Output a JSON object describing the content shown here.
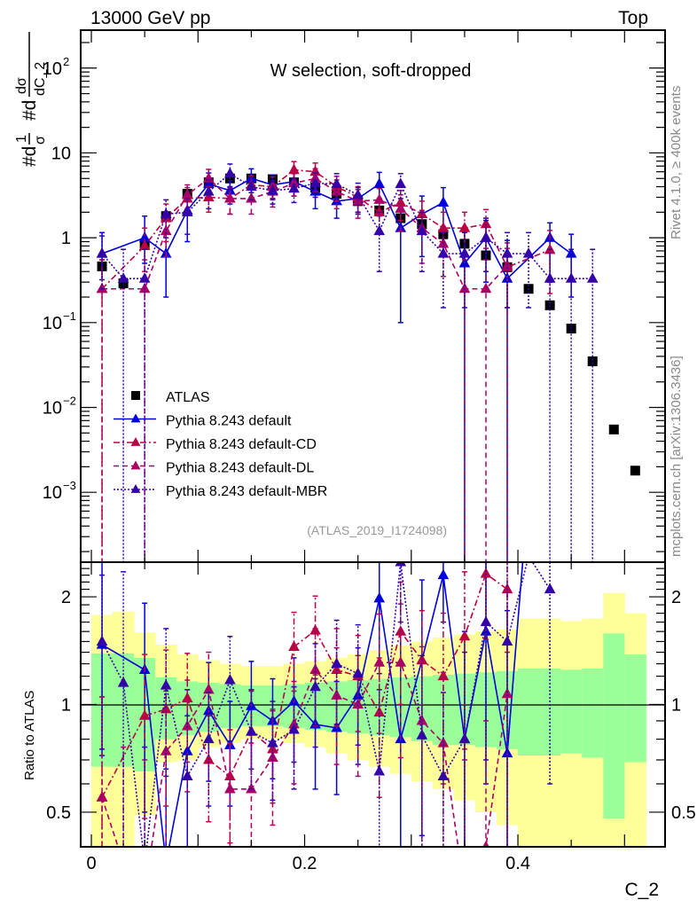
{
  "header": {
    "left_label": "13000 GeV pp",
    "right_label": "Top"
  },
  "side_labels": {
    "rivet": "Rivet 4.1.0, ≥ 400k events",
    "mcplots": "mcplots.cern.ch [arXiv:1306.3436]"
  },
  "chart_data": [
    {
      "type": "scatter",
      "panel": "main",
      "title": "W selection, soft-dropped",
      "xlabel": "C_2",
      "ylabel": "1/σ dσ/dC_2",
      "ylabel_parts": [
        "#d",
        "1",
        "σ",
        "#d",
        "dσ",
        "dC_2"
      ],
      "yscale": "log",
      "xlim": [
        -0.01,
        0.538
      ],
      "ylim": [
        0.00015,
        280
      ],
      "yticks": [
        {
          "value": 0.001,
          "label": "10",
          "exp": "−3"
        },
        {
          "value": 0.01,
          "label": "10",
          "exp": "−2"
        },
        {
          "value": 0.1,
          "label": "10",
          "exp": "−1"
        },
        {
          "value": 1,
          "label": "1",
          "exp": ""
        },
        {
          "value": 10,
          "label": "10",
          "exp": ""
        },
        {
          "value": 100,
          "label": "10",
          "exp": "2"
        }
      ],
      "annotation": "(ATLAS_2019_I1724098)",
      "legend_position": "lower-left",
      "x": [
        0.01,
        0.03,
        0.05,
        0.07,
        0.09,
        0.11,
        0.13,
        0.15,
        0.17,
        0.19,
        0.21,
        0.23,
        0.25,
        0.27,
        0.29,
        0.31,
        0.33,
        0.35,
        0.37,
        0.39,
        0.41,
        0.43,
        0.45,
        0.47,
        0.49,
        0.51
      ],
      "series": [
        {
          "name": "ATLAS",
          "marker": "square",
          "color": "#000000",
          "values": [
            0.46,
            0.29,
            0.85,
            1.8,
            3.3,
            4.5,
            5.0,
            5.0,
            4.9,
            4.5,
            3.9,
            3.3,
            2.7,
            2.1,
            1.7,
            1.45,
            1.1,
            0.85,
            0.62,
            0.45,
            0.25,
            0.16,
            0.085,
            0.035,
            0.0055,
            0.0018
          ]
        },
        {
          "name": "Pythia 8.243 default",
          "marker": "triangle",
          "line": "solid",
          "color": "#0000dd",
          "values": [
            0.65,
            null,
            1.0,
            0.65,
            2.1,
            4.3,
            3.6,
            5.0,
            4.2,
            4.6,
            3.5,
            2.7,
            2.9,
            4.3,
            1.3,
            1.9,
            2.6,
            0.5,
            1.0,
            0.33,
            null,
            1.0,
            0.65,
            null,
            null,
            null
          ],
          "err_lo": [
            0.33,
            null,
            0.5,
            0.45,
            1.2,
            1.5,
            1.1,
            1.6,
            1.3,
            1.5,
            1.3,
            1.0,
            1.0,
            1.6,
            1.2,
            1.3,
            1.4,
            0.5,
            0.7,
            0.33,
            null,
            0.7,
            0.45,
            null,
            null,
            null
          ],
          "err_hi": [
            0.5,
            null,
            0.8,
            0.6,
            1.3,
            1.5,
            1.1,
            1.5,
            1.3,
            1.5,
            1.3,
            1.0,
            1.0,
            1.6,
            1.0,
            1.2,
            1.3,
            0.7,
            0.7,
            0.6,
            null,
            0.5,
            0.45,
            null,
            null,
            null
          ]
        },
        {
          "name": "Pythia 8.243 default-CD",
          "marker": "triangle",
          "line": "dashdot",
          "color": "#bb0044",
          "values": [
            0.25,
            null,
            0.8,
            1.7,
            2.9,
            3.0,
            2.9,
            4.2,
            4.0,
            6.3,
            6.0,
            4.0,
            3.0,
            2.0,
            2.6,
            1.9,
            1.3,
            1.3,
            1.45,
            0.45,
            null,
            0.72,
            null,
            null,
            null,
            null
          ],
          "err_lo": [
            0.25,
            null,
            0.4,
            0.8,
            1.0,
            1.0,
            1.0,
            1.2,
            1.2,
            1.6,
            1.6,
            1.3,
            1.0,
            0.9,
            1.0,
            0.8,
            0.7,
            0.7,
            0.7,
            0.3,
            null,
            0.5,
            null,
            null,
            null,
            null
          ],
          "err_hi": [
            0.3,
            null,
            0.5,
            0.8,
            1.0,
            1.0,
            1.0,
            1.2,
            1.2,
            1.6,
            1.6,
            1.3,
            1.0,
            0.9,
            1.0,
            0.8,
            0.7,
            0.7,
            0.7,
            0.3,
            null,
            0.5,
            null,
            null,
            null,
            null
          ]
        },
        {
          "name": "Pythia 8.243 default-DL",
          "marker": "triangle",
          "line": "dashed",
          "color": "#aa0066",
          "values": [
            0.25,
            null,
            0.25,
            1.2,
            3.2,
            5.0,
            2.9,
            2.9,
            3.5,
            4.4,
            5.0,
            3.5,
            2.7,
            2.8,
            2.2,
            1.3,
            0.85,
            0.25,
            0.25,
            0.47,
            null,
            null,
            null,
            null,
            null,
            null
          ],
          "err_lo": [
            0.25,
            null,
            0.25,
            0.6,
            1.0,
            1.4,
            1.0,
            1.0,
            1.2,
            1.3,
            1.5,
            1.3,
            1.0,
            1.0,
            1.0,
            0.8,
            0.5,
            0.25,
            0.25,
            0.47,
            null,
            null,
            null,
            null,
            null,
            null
          ],
          "err_hi": [
            0.3,
            null,
            0.3,
            0.6,
            1.0,
            1.4,
            1.0,
            1.0,
            1.2,
            1.3,
            1.5,
            1.3,
            1.0,
            1.0,
            1.0,
            0.8,
            0.5,
            0.3,
            0.3,
            0.4,
            null,
            null,
            null,
            null,
            null,
            null
          ]
        },
        {
          "name": "Pythia 8.243 default-MBR",
          "marker": "triangle",
          "line": "dotted",
          "color": "#3300aa",
          "values": [
            0.65,
            0.33,
            0.33,
            1.9,
            2.0,
            3.5,
            5.7,
            4.0,
            3.6,
            3.8,
            4.4,
            4.3,
            3.2,
            1.2,
            4.3,
            1.2,
            0.65,
            0.65,
            1.0,
            0.65,
            0.65,
            0.33,
            0.33,
            0.33,
            null,
            null
          ],
          "err_lo": [
            0.4,
            0.33,
            0.33,
            0.9,
            0.9,
            1.3,
            1.7,
            1.2,
            1.1,
            1.2,
            1.4,
            1.4,
            1.2,
            0.8,
            1.4,
            0.8,
            0.5,
            0.5,
            0.6,
            0.5,
            0.5,
            0.33,
            0.33,
            0.33,
            null,
            null
          ],
          "err_hi": [
            0.4,
            0.4,
            0.4,
            0.9,
            0.9,
            1.3,
            1.7,
            1.2,
            1.1,
            1.2,
            1.4,
            1.4,
            1.2,
            0.8,
            1.4,
            0.8,
            0.5,
            0.5,
            0.6,
            0.5,
            0.5,
            0.4,
            0.4,
            0.4,
            null,
            null
          ]
        }
      ]
    },
    {
      "type": "scatter",
      "panel": "ratio",
      "xlabel": "C_2",
      "ylabel": "Ratio to ATLAS",
      "yscale": "log",
      "xlim": [
        -0.01,
        0.538
      ],
      "ylim": [
        0.4,
        2.5
      ],
      "xticks": [
        {
          "value": 0,
          "label": "0"
        },
        {
          "value": 0.2,
          "label": "0.2"
        },
        {
          "value": 0.4,
          "label": "0.4"
        }
      ],
      "yticks": [
        {
          "value": 0.5,
          "label": "0.5"
        },
        {
          "value": 1,
          "label": "1"
        },
        {
          "value": 2,
          "label": "2"
        }
      ],
      "reference_line": 1,
      "bands": {
        "bin_edges": [
          0.0,
          0.02,
          0.04,
          0.06,
          0.08,
          0.1,
          0.12,
          0.14,
          0.16,
          0.18,
          0.2,
          0.22,
          0.24,
          0.26,
          0.28,
          0.3,
          0.32,
          0.34,
          0.36,
          0.38,
          0.4,
          0.42,
          0.44,
          0.46,
          0.48,
          0.5,
          0.52
        ],
        "inner_color": "#99ff99",
        "outer_color": "#ffff99",
        "inner_lo": [
          0.67,
          0.67,
          0.65,
          0.8,
          0.82,
          0.84,
          0.86,
          0.87,
          0.87,
          0.86,
          0.85,
          0.84,
          0.83,
          0.82,
          0.81,
          0.79,
          0.77,
          0.77,
          0.76,
          0.75,
          0.72,
          0.72,
          0.73,
          0.71,
          0.48,
          0.69
        ],
        "inner_hi": [
          1.39,
          1.39,
          1.35,
          1.19,
          1.16,
          1.15,
          1.14,
          1.13,
          1.13,
          1.14,
          1.15,
          1.16,
          1.17,
          1.18,
          1.19,
          1.2,
          1.21,
          1.22,
          1.23,
          1.24,
          1.26,
          1.26,
          1.25,
          1.26,
          1.58,
          1.38
        ],
        "outer_lo": [
          0.36,
          0.36,
          0.49,
          0.69,
          0.7,
          0.76,
          0.78,
          0.8,
          0.8,
          0.78,
          0.76,
          0.73,
          0.7,
          0.67,
          0.64,
          0.61,
          0.58,
          0.54,
          0.5,
          0.46,
          0.4,
          0.4,
          0.4,
          0.4,
          0.4,
          0.4
        ],
        "outer_hi": [
          1.78,
          1.82,
          1.59,
          1.47,
          1.38,
          1.33,
          1.3,
          1.28,
          1.28,
          1.3,
          1.32,
          1.35,
          1.38,
          1.42,
          1.46,
          1.5,
          1.54,
          1.57,
          1.6,
          1.62,
          1.74,
          1.74,
          1.71,
          1.74,
          2.05,
          1.8
        ]
      },
      "x": [
        0.01,
        0.03,
        0.05,
        0.07,
        0.09,
        0.11,
        0.13,
        0.15,
        0.17,
        0.19,
        0.21,
        0.23,
        0.25,
        0.27,
        0.29,
        0.31,
        0.33,
        0.35,
        0.37,
        0.39,
        0.41,
        0.43,
        0.45,
        0.47,
        0.49,
        0.51
      ],
      "series": [
        {
          "name": "Pythia 8.243 default",
          "color": "#0000dd",
          "line": "solid",
          "values": [
            1.47,
            null,
            1.25,
            0.36,
            0.74,
            0.96,
            0.77,
            0.99,
            0.9,
            1.02,
            0.88,
            0.86,
            1.06,
            1.98,
            0.8,
            1.33,
            2.3,
            0.8,
            1.6,
            0.73,
            4.0,
            null,
            null,
            null,
            null,
            null
          ],
          "err_lo": [
            0.75,
            null,
            0.75,
            0.25,
            0.36,
            0.35,
            0.25,
            0.33,
            0.28,
            0.33,
            0.3,
            0.3,
            0.38,
            0.76,
            0.7,
            0.9,
            0.6,
            0.6,
            1.0,
            0.73,
            null,
            null,
            null,
            null,
            null,
            null
          ],
          "err_hi": [
            1.1,
            null,
            0.67,
            0.3,
            0.36,
            0.35,
            0.25,
            0.33,
            0.28,
            0.33,
            0.3,
            0.3,
            0.38,
            0.76,
            0.8,
            0.9,
            0.6,
            0.8,
            1.0,
            1.1,
            null,
            null,
            null,
            null,
            null,
            null
          ]
        },
        {
          "name": "Pythia 8.243 default-CD",
          "color": "#bb0044",
          "line": "dashdot",
          "values": [
            0.55,
            null,
            0.93,
            0.97,
            1.04,
            0.7,
            0.63,
            0.84,
            0.75,
            1.45,
            1.61,
            1.25,
            1.2,
            0.95,
            1.6,
            1.33,
            1.2,
            1.55,
            2.32,
            2.1,
            null,
            null,
            null,
            null,
            null,
            null
          ],
          "err_lo": [
            0.4,
            null,
            0.45,
            0.45,
            0.35,
            0.23,
            0.22,
            0.25,
            0.22,
            0.36,
            0.4,
            0.38,
            0.36,
            0.4,
            0.6,
            0.5,
            0.6,
            0.8,
            0.8,
            0.7,
            null,
            null,
            null,
            null,
            null,
            null
          ],
          "err_hi": [
            0.5,
            null,
            0.45,
            0.45,
            0.35,
            0.23,
            0.22,
            0.25,
            0.22,
            0.36,
            0.4,
            0.38,
            0.36,
            0.4,
            0.6,
            0.5,
            0.6,
            0.8,
            0.8,
            0.7,
            null,
            null,
            null,
            null,
            null,
            null
          ]
        },
        {
          "name": "Pythia 8.243 default-DL",
          "color": "#aa0066",
          "line": "dashed",
          "values": [
            0.55,
            0.36,
            0.3,
            0.74,
            0.87,
            1.1,
            0.58,
            0.58,
            0.71,
            0.88,
            1.25,
            1.06,
            1.0,
            1.31,
            1.31,
            0.9,
            0.78,
            0.3,
            0.4,
            1.07,
            null,
            null,
            null,
            null,
            null,
            null
          ],
          "err_lo": [
            0.4,
            0.3,
            0.3,
            0.35,
            0.3,
            0.3,
            0.2,
            0.2,
            0.25,
            0.28,
            0.38,
            0.38,
            0.37,
            0.48,
            0.6,
            0.55,
            0.45,
            0.3,
            0.4,
            1.0,
            null,
            null,
            null,
            null,
            null,
            null
          ],
          "err_hi": [
            0.5,
            0.4,
            0.4,
            0.35,
            0.3,
            0.3,
            0.2,
            0.2,
            0.25,
            0.28,
            0.38,
            0.38,
            0.37,
            0.48,
            0.6,
            0.55,
            0.45,
            0.4,
            0.5,
            1.0,
            null,
            null,
            null,
            null,
            null,
            null
          ]
        },
        {
          "name": "Pythia 8.243 default-MBR",
          "color": "#3300aa",
          "line": "dotted",
          "values": [
            1.5,
            1.15,
            0.36,
            1.13,
            0.63,
            0.8,
            1.17,
            0.84,
            0.78,
            0.85,
            1.12,
            1.3,
            1.22,
            0.65,
            2.5,
            0.82,
            0.63,
            0.8,
            1.7,
            1.5,
            2.6,
            2.1,
            null,
            null,
            null,
            null
          ],
          "err_lo": [
            0.75,
            0.9,
            0.36,
            0.5,
            0.3,
            0.28,
            0.38,
            0.26,
            0.24,
            0.27,
            0.36,
            0.42,
            0.45,
            0.45,
            0.8,
            0.55,
            0.45,
            0.6,
            1.0,
            1.2,
            null,
            1.5,
            null,
            null,
            null,
            null
          ],
          "err_hi": [
            0.8,
            1.2,
            0.4,
            0.5,
            0.3,
            0.28,
            0.38,
            0.26,
            0.24,
            0.27,
            0.36,
            0.42,
            0.45,
            0.45,
            0.8,
            0.55,
            0.45,
            0.6,
            1.0,
            1.2,
            null,
            1.5,
            null,
            null,
            null,
            null
          ]
        }
      ]
    }
  ]
}
